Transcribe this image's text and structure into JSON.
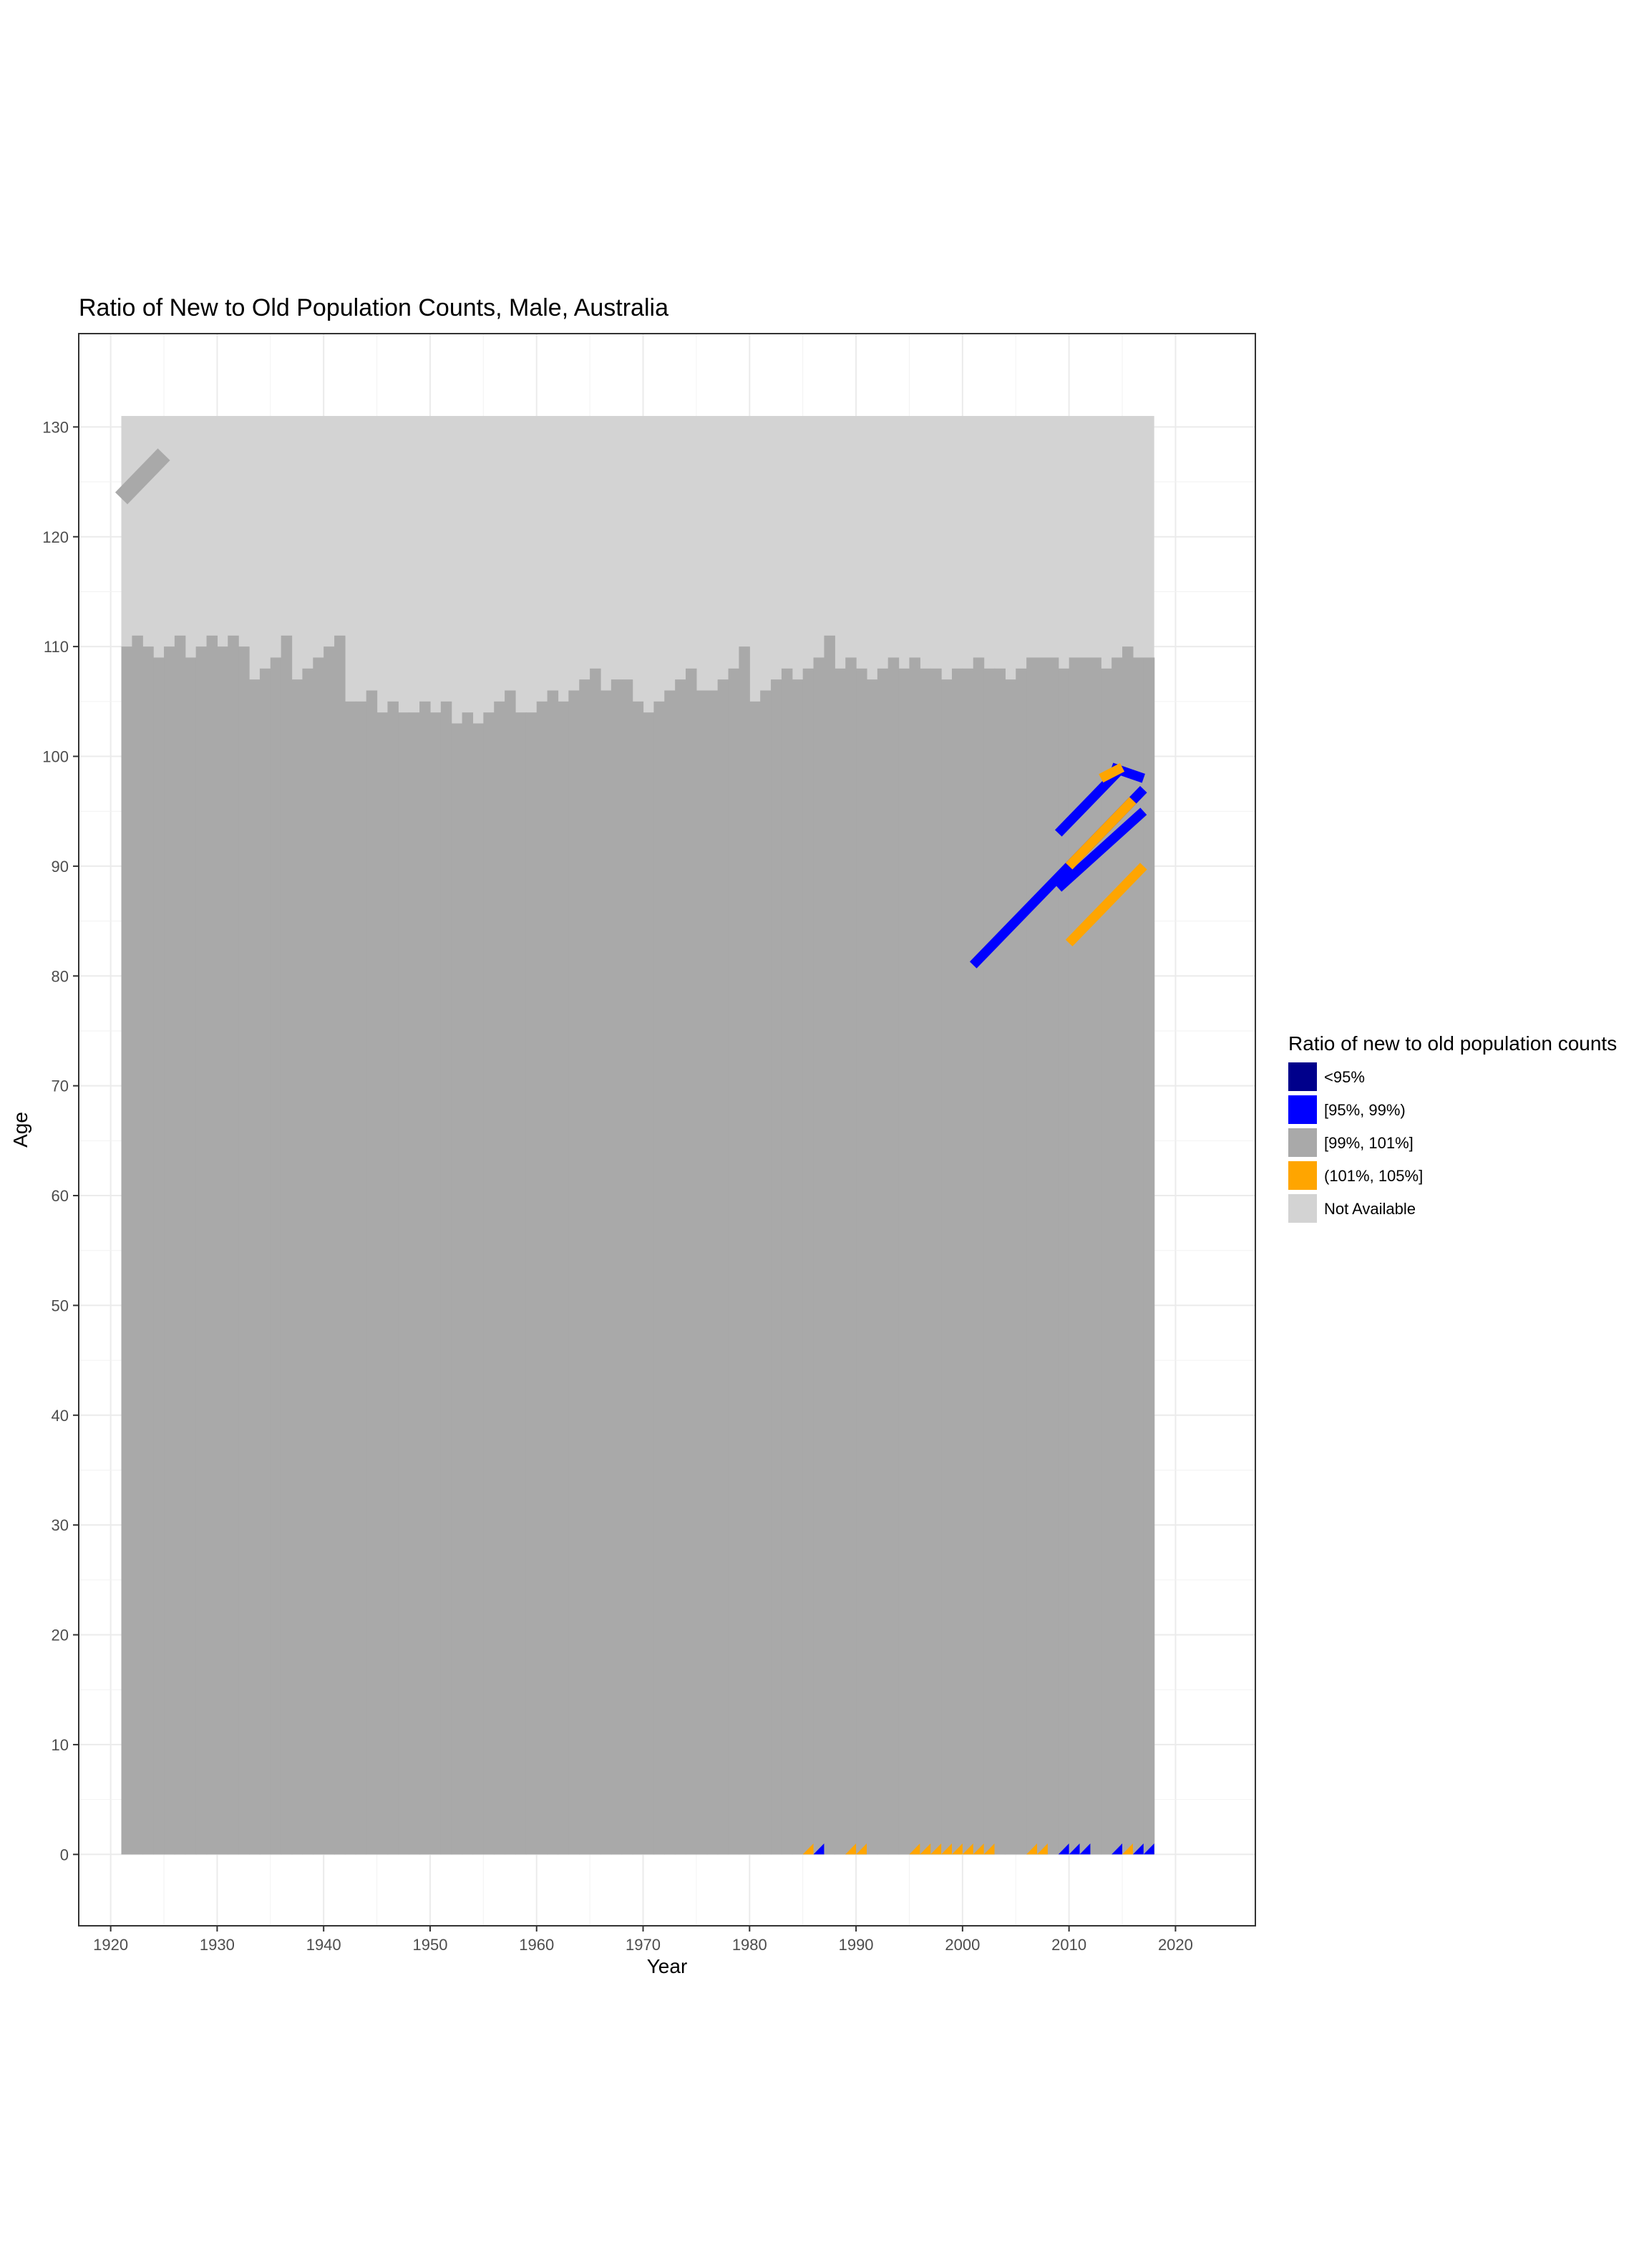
{
  "chart_data": {
    "type": "heatmap",
    "title": "Ratio of New to Old Population Counts, Male, Australia",
    "xlabel": "Year",
    "ylabel": "Age",
    "xlim": [
      1917,
      2027.5
    ],
    "ylim": [
      -6.5,
      138.5
    ],
    "x_ticks": [
      1920,
      1930,
      1940,
      1950,
      1960,
      1970,
      1980,
      1990,
      2000,
      2010,
      2020
    ],
    "y_ticks": [
      0,
      10,
      20,
      30,
      40,
      50,
      60,
      70,
      80,
      90,
      100,
      110,
      120,
      130
    ],
    "grid": true,
    "legend_position": "right",
    "legend": {
      "title": "Ratio of new to old population counts",
      "items": [
        {
          "label": "<95%",
          "color": "#00008b"
        },
        {
          "label": "[95%, 99%)",
          "color": "#0000ff"
        },
        {
          "label": "[99%, 101%]",
          "color": "#a9a9a9"
        },
        {
          "label": "(101%, 105%]",
          "color": "#ffa500"
        },
        {
          "label": "Not Available",
          "color": "#d3d3d3"
        }
      ]
    },
    "year_range": [
      1921,
      2017
    ],
    "not_available_region": {
      "x": [
        1921,
        2018
      ],
      "y": [
        0,
        131
      ]
    },
    "available_top_age_by_year": [
      [
        1921,
        110
      ],
      [
        1922,
        111
      ],
      [
        1923,
        110
      ],
      [
        1924,
        109
      ],
      [
        1925,
        110
      ],
      [
        1926,
        111
      ],
      [
        1927,
        109
      ],
      [
        1928,
        110
      ],
      [
        1929,
        111
      ],
      [
        1930,
        110
      ],
      [
        1931,
        111
      ],
      [
        1932,
        110
      ],
      [
        1933,
        107
      ],
      [
        1934,
        108
      ],
      [
        1935,
        109
      ],
      [
        1936,
        111
      ],
      [
        1937,
        107
      ],
      [
        1938,
        108
      ],
      [
        1939,
        109
      ],
      [
        1940,
        110
      ],
      [
        1941,
        111
      ],
      [
        1942,
        105
      ],
      [
        1943,
        105
      ],
      [
        1944,
        106
      ],
      [
        1945,
        104
      ],
      [
        1946,
        105
      ],
      [
        1947,
        104
      ],
      [
        1948,
        104
      ],
      [
        1949,
        105
      ],
      [
        1950,
        104
      ],
      [
        1951,
        105
      ],
      [
        1952,
        103
      ],
      [
        1953,
        104
      ],
      [
        1954,
        103
      ],
      [
        1955,
        104
      ],
      [
        1956,
        105
      ],
      [
        1957,
        106
      ],
      [
        1958,
        104
      ],
      [
        1959,
        104
      ],
      [
        1960,
        105
      ],
      [
        1961,
        106
      ],
      [
        1962,
        105
      ],
      [
        1963,
        106
      ],
      [
        1964,
        107
      ],
      [
        1965,
        108
      ],
      [
        1966,
        106
      ],
      [
        1967,
        107
      ],
      [
        1968,
        107
      ],
      [
        1969,
        105
      ],
      [
        1970,
        104
      ],
      [
        1971,
        105
      ],
      [
        1972,
        106
      ],
      [
        1973,
        107
      ],
      [
        1974,
        108
      ],
      [
        1975,
        106
      ],
      [
        1976,
        106
      ],
      [
        1977,
        107
      ],
      [
        1978,
        108
      ],
      [
        1979,
        110
      ],
      [
        1980,
        105
      ],
      [
        1981,
        106
      ],
      [
        1982,
        107
      ],
      [
        1983,
        108
      ],
      [
        1984,
        107
      ],
      [
        1985,
        108
      ],
      [
        1986,
        109
      ],
      [
        1987,
        111
      ],
      [
        1988,
        108
      ],
      [
        1989,
        109
      ],
      [
        1990,
        108
      ],
      [
        1991,
        107
      ],
      [
        1992,
        108
      ],
      [
        1993,
        109
      ],
      [
        1994,
        108
      ],
      [
        1995,
        109
      ],
      [
        1996,
        108
      ],
      [
        1997,
        108
      ],
      [
        1998,
        107
      ],
      [
        1999,
        108
      ],
      [
        2000,
        108
      ],
      [
        2001,
        109
      ],
      [
        2002,
        108
      ],
      [
        2003,
        108
      ],
      [
        2004,
        107
      ],
      [
        2005,
        108
      ],
      [
        2006,
        109
      ],
      [
        2007,
        109
      ],
      [
        2008,
        109
      ],
      [
        2009,
        108
      ],
      [
        2010,
        109
      ],
      [
        2011,
        109
      ],
      [
        2012,
        109
      ],
      [
        2013,
        108
      ],
      [
        2014,
        109
      ],
      [
        2015,
        110
      ],
      [
        2016,
        109
      ],
      [
        2017,
        109
      ]
    ],
    "early_outlier_cohort": {
      "from": [
        1921,
        123
      ],
      "to": [
        1925,
        127
      ],
      "category": "[99%, 101%]"
    },
    "cohort_lines": [
      {
        "category": "[95%, 99%)",
        "from": [
          2001,
          81
        ],
        "to": [
          2017,
          97
        ]
      },
      {
        "category": "[95%, 99%)",
        "from": [
          2009,
          88
        ],
        "to": [
          2017,
          95
        ]
      },
      {
        "category": "[95%, 99%)",
        "from": [
          2009,
          93
        ],
        "to": [
          2015,
          99
        ]
      },
      {
        "category": "[95%, 99%)",
        "from": [
          2014,
          99
        ],
        "to": [
          2017,
          98
        ]
      },
      {
        "category": "(101%, 105%]",
        "from": [
          2010,
          83
        ],
        "to": [
          2017,
          90
        ]
      },
      {
        "category": "(101%, 105%]",
        "from": [
          2010,
          90
        ],
        "to": [
          2016,
          96
        ]
      },
      {
        "category": "(101%, 105%]",
        "from": [
          2013,
          98
        ],
        "to": [
          2015,
          99
        ]
      }
    ],
    "age_zero_cells": [
      {
        "year": 1985,
        "category": "(101%, 105%]"
      },
      {
        "year": 1986,
        "category": "[95%, 99%)"
      },
      {
        "year": 1989,
        "category": "(101%, 105%]"
      },
      {
        "year": 1990,
        "category": "(101%, 105%]"
      },
      {
        "year": 1995,
        "category": "(101%, 105%]"
      },
      {
        "year": 1996,
        "category": "(101%, 105%]"
      },
      {
        "year": 1997,
        "category": "(101%, 105%]"
      },
      {
        "year": 1998,
        "category": "(101%, 105%]"
      },
      {
        "year": 1999,
        "category": "(101%, 105%]"
      },
      {
        "year": 2000,
        "category": "(101%, 105%]"
      },
      {
        "year": 2001,
        "category": "(101%, 105%]"
      },
      {
        "year": 2002,
        "category": "(101%, 105%]"
      },
      {
        "year": 2006,
        "category": "(101%, 105%]"
      },
      {
        "year": 2007,
        "category": "(101%, 105%]"
      },
      {
        "year": 2009,
        "category": "[95%, 99%)"
      },
      {
        "year": 2010,
        "category": "[95%, 99%)"
      },
      {
        "year": 2011,
        "category": "[95%, 99%)"
      },
      {
        "year": 2014,
        "category": "[95%, 99%)"
      },
      {
        "year": 2015,
        "category": "(101%, 105%]"
      },
      {
        "year": 2016,
        "category": "[95%, 99%)"
      },
      {
        "year": 2017,
        "category": "[95%, 99%)"
      }
    ]
  }
}
